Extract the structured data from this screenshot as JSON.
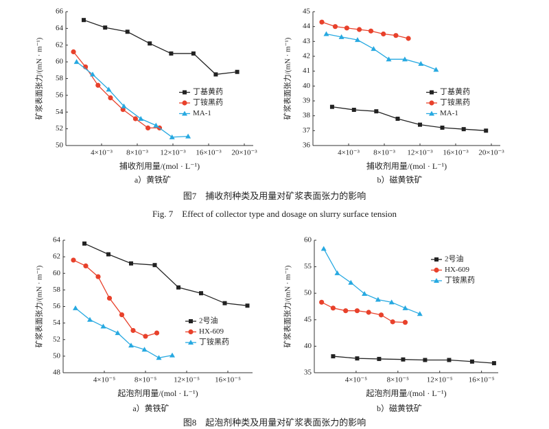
{
  "chart_data": [
    {
      "type": "line",
      "caption": "a）黄铁矿",
      "xlabel": "捕收剂用量/(mol · L⁻¹)",
      "ylabel": "矿浆表面张力/(mN · m⁻¹)",
      "xlim": [
        0,
        0.021
      ],
      "ylim": [
        50,
        66
      ],
      "xticks": [
        {
          "value": 0.004,
          "label": "4×10⁻³"
        },
        {
          "value": 0.008,
          "label": "8×10⁻³"
        },
        {
          "value": 0.012,
          "label": "12×10⁻³"
        },
        {
          "value": 0.016,
          "label": "16×10⁻³"
        },
        {
          "value": 0.02,
          "label": "20×10⁻³"
        }
      ],
      "yticks": [
        50,
        52,
        54,
        56,
        58,
        60,
        62,
        64,
        66
      ],
      "legend": "center right",
      "series": [
        {
          "name": "丁基黄药",
          "color": "#222222",
          "marker": "square",
          "x": [
            0.002,
            0.0044,
            0.0069,
            0.0094,
            0.0118,
            0.0143,
            0.0168,
            0.0192
          ],
          "values": [
            65.0,
            64.1,
            63.6,
            62.2,
            61.0,
            61.0,
            58.5,
            58.8
          ]
        },
        {
          "name": "丁铵黑药",
          "color": "#e8412b",
          "marker": "circle",
          "x": [
            0.00085,
            0.0022,
            0.0036,
            0.005,
            0.0064,
            0.0078,
            0.0092,
            0.0105
          ],
          "values": [
            61.2,
            59.4,
            57.2,
            55.7,
            54.3,
            53.2,
            52.1,
            52.1
          ]
        },
        {
          "name": "MA-1",
          "color": "#27a9e1",
          "marker": "triangle",
          "x": [
            0.0012,
            0.003,
            0.0048,
            0.0065,
            0.0084,
            0.0101,
            0.0119,
            0.0137
          ],
          "values": [
            60.0,
            58.5,
            56.7,
            54.7,
            53.2,
            52.4,
            51.0,
            51.1
          ]
        }
      ]
    },
    {
      "type": "line",
      "caption": "b）磁黄铁矿",
      "xlabel": "捕收剂用量/(mol · L⁻¹)",
      "ylabel": "矿浆表面张力/(mN · m⁻¹)",
      "xlim": [
        0,
        0.021
      ],
      "ylim": [
        36,
        45
      ],
      "xticks": [
        {
          "value": 0.004,
          "label": "4×10⁻³"
        },
        {
          "value": 0.008,
          "label": "8×10⁻³"
        },
        {
          "value": 0.012,
          "label": "12×10⁻³"
        },
        {
          "value": 0.016,
          "label": "16×10⁻³"
        },
        {
          "value": 0.02,
          "label": "20×10⁻³"
        }
      ],
      "yticks": [
        36,
        37,
        38,
        39,
        40,
        41,
        42,
        43,
        44,
        45
      ],
      "legend": "center right",
      "series": [
        {
          "name": "丁基黄药",
          "color": "#222222",
          "marker": "square",
          "x": [
            0.00215,
            0.0046,
            0.0071,
            0.0095,
            0.012,
            0.0145,
            0.0169,
            0.0194
          ],
          "values": [
            38.6,
            38.4,
            38.3,
            37.8,
            37.4,
            37.2,
            37.1,
            37.0
          ]
        },
        {
          "name": "丁铵黑药",
          "color": "#e8412b",
          "marker": "circle",
          "x": [
            0.001,
            0.0025,
            0.0038,
            0.0052,
            0.0065,
            0.0079,
            0.0093,
            0.0107
          ],
          "values": [
            44.3,
            44.0,
            43.9,
            43.8,
            43.7,
            43.5,
            43.4,
            43.2
          ]
        },
        {
          "name": "MA-1",
          "color": "#27a9e1",
          "marker": "triangle",
          "x": [
            0.0015,
            0.0032,
            0.005,
            0.0068,
            0.0085,
            0.0103,
            0.0121,
            0.0138
          ],
          "values": [
            43.5,
            43.3,
            43.1,
            42.5,
            41.8,
            41.8,
            41.5,
            41.1
          ]
        }
      ]
    },
    {
      "type": "line",
      "caption": "a）黄铁矿",
      "xlabel": "起泡剂用量/(mol · L⁻¹)",
      "ylabel": "矿浆表面张力/(mN · m⁻¹)",
      "xlim": [
        0,
        0.000184
      ],
      "ylim": [
        48,
        64
      ],
      "xticks": [
        {
          "value": 4e-05,
          "label": "4×10⁻⁵"
        },
        {
          "value": 8e-05,
          "label": "8×10⁻⁵"
        },
        {
          "value": 0.00012,
          "label": "12×10⁻⁵"
        },
        {
          "value": 0.00016,
          "label": "16×10⁻⁵"
        }
      ],
      "yticks": [
        48,
        50,
        52,
        54,
        56,
        58,
        60,
        62,
        64
      ],
      "legend": "lower right",
      "series": [
        {
          "name": "2号油",
          "color": "#222222",
          "marker": "square",
          "x": [
            2.07e-05,
            4.4e-05,
            6.6e-05,
            8.9e-05,
            0.000112,
            0.000134,
            0.000157,
            0.000179
          ],
          "values": [
            63.6,
            62.3,
            61.2,
            61.0,
            58.3,
            57.6,
            56.4,
            56.1
          ]
        },
        {
          "name": "HX-609",
          "color": "#e8412b",
          "marker": "circle",
          "x": [
            1e-05,
            2.2e-05,
            3.4e-05,
            4.5e-05,
            5.7e-05,
            6.8e-05,
            8e-05,
            9.1e-05
          ],
          "values": [
            61.6,
            60.9,
            59.6,
            57.0,
            55.0,
            53.1,
            52.4,
            52.8
          ]
        },
        {
          "name": "丁铵黑药",
          "color": "#27a9e1",
          "marker": "triangle",
          "x": [
            1.2e-05,
            2.6e-05,
            3.9e-05,
            5.3e-05,
            6.6e-05,
            7.9e-05,
            9.3e-05,
            0.000106
          ],
          "values": [
            55.8,
            54.4,
            53.6,
            52.8,
            51.3,
            50.8,
            49.8,
            50.1
          ]
        }
      ]
    },
    {
      "type": "line",
      "caption": "b）磁黄铁矿",
      "xlabel": "起泡剂用量/(mol · L⁻¹)",
      "ylabel": "矿浆表面张力/(mN · m⁻¹)",
      "xlim": [
        0,
        0.000176
      ],
      "ylim": [
        35,
        60
      ],
      "xticks": [
        {
          "value": 4e-05,
          "label": "4×10⁻⁵"
        },
        {
          "value": 8e-05,
          "label": "8×10⁻⁵"
        },
        {
          "value": 0.00012,
          "label": "12×10⁻⁵"
        },
        {
          "value": 0.00016,
          "label": "16×10⁻⁵"
        }
      ],
      "yticks": [
        35,
        40,
        45,
        50,
        55,
        60
      ],
      "legend": "upper center",
      "series": [
        {
          "name": "2号油",
          "color": "#222222",
          "marker": "square",
          "x": [
            1.8e-05,
            4.1e-05,
            6.2e-05,
            8.5e-05,
            0.000106,
            0.000129,
            0.000151,
            0.000172
          ],
          "values": [
            38.1,
            37.7,
            37.6,
            37.5,
            37.4,
            37.4,
            37.1,
            36.8
          ]
        },
        {
          "name": "HX-609",
          "color": "#e8412b",
          "marker": "circle",
          "x": [
            7e-06,
            1.8e-05,
            3e-05,
            4.1e-05,
            5.2e-05,
            6.4e-05,
            7.5e-05,
            8.7e-05
          ],
          "values": [
            48.3,
            47.2,
            46.7,
            46.7,
            46.4,
            45.9,
            44.6,
            44.5
          ]
        },
        {
          "name": "丁铵黑药",
          "color": "#27a9e1",
          "marker": "triangle",
          "x": [
            9e-06,
            2.2e-05,
            3.5e-05,
            4.8e-05,
            6.1e-05,
            7.4e-05,
            8.7e-05,
            0.000101
          ],
          "values": [
            58.4,
            53.8,
            52.0,
            49.9,
            48.8,
            48.3,
            47.2,
            46.1
          ]
        }
      ]
    }
  ],
  "figures": [
    {
      "caption": "图7　捕收剂种类及用量对矿浆表面张力的影响",
      "caption_en": "Fig. 7　Effect of collector type and dosage on slurry surface tension"
    },
    {
      "caption": "图8　起泡剂种类及用量对矿浆表面张力的影响"
    }
  ]
}
